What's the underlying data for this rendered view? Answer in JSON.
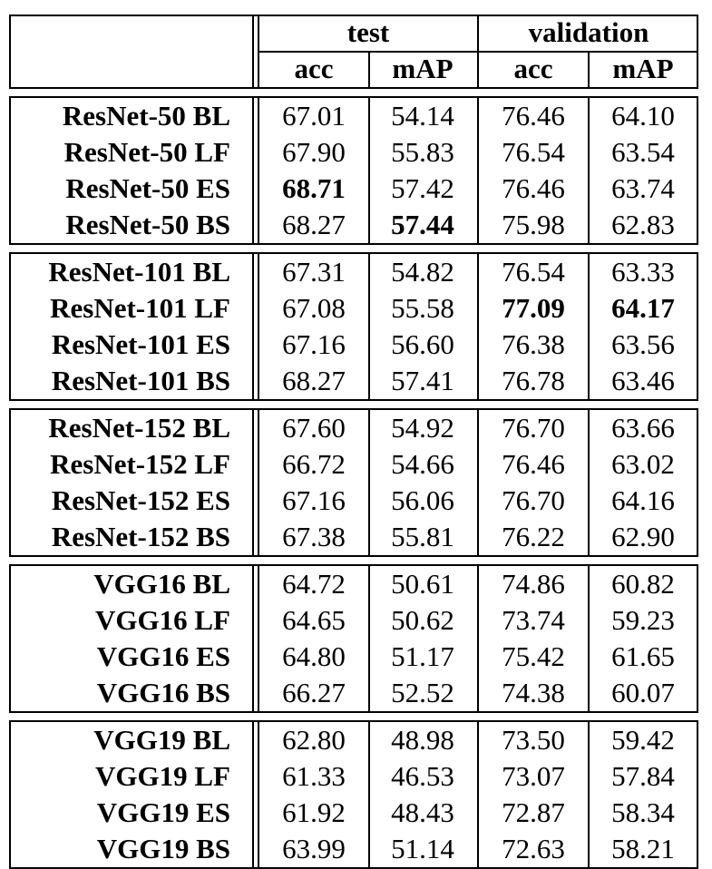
{
  "header": {
    "groups": [
      "test",
      "validation"
    ],
    "subcolumns": [
      "acc",
      "mAP",
      "acc",
      "mAP"
    ]
  },
  "groups": [
    {
      "rows": [
        {
          "label": "ResNet-50 BL",
          "values": [
            "67.01",
            "54.14",
            "76.46",
            "64.10"
          ],
          "bold": [
            false,
            false,
            false,
            false
          ]
        },
        {
          "label": "ResNet-50 LF",
          "values": [
            "67.90",
            "55.83",
            "76.54",
            "63.54"
          ],
          "bold": [
            false,
            false,
            false,
            false
          ]
        },
        {
          "label": "ResNet-50 ES",
          "values": [
            "68.71",
            "57.42",
            "76.46",
            "63.74"
          ],
          "bold": [
            true,
            false,
            false,
            false
          ]
        },
        {
          "label": "ResNet-50 BS",
          "values": [
            "68.27",
            "57.44",
            "75.98",
            "62.83"
          ],
          "bold": [
            false,
            true,
            false,
            false
          ]
        }
      ]
    },
    {
      "rows": [
        {
          "label": "ResNet-101 BL",
          "values": [
            "67.31",
            "54.82",
            "76.54",
            "63.33"
          ],
          "bold": [
            false,
            false,
            false,
            false
          ]
        },
        {
          "label": "ResNet-101 LF",
          "values": [
            "67.08",
            "55.58",
            "77.09",
            "64.17"
          ],
          "bold": [
            false,
            false,
            true,
            true
          ]
        },
        {
          "label": "ResNet-101 ES",
          "values": [
            "67.16",
            "56.60",
            "76.38",
            "63.56"
          ],
          "bold": [
            false,
            false,
            false,
            false
          ]
        },
        {
          "label": "ResNet-101 BS",
          "values": [
            "68.27",
            "57.41",
            "76.78",
            "63.46"
          ],
          "bold": [
            false,
            false,
            false,
            false
          ]
        }
      ]
    },
    {
      "rows": [
        {
          "label": "ResNet-152 BL",
          "values": [
            "67.60",
            "54.92",
            "76.70",
            "63.66"
          ],
          "bold": [
            false,
            false,
            false,
            false
          ]
        },
        {
          "label": "ResNet-152 LF",
          "values": [
            "66.72",
            "54.66",
            "76.46",
            "63.02"
          ],
          "bold": [
            false,
            false,
            false,
            false
          ]
        },
        {
          "label": "ResNet-152 ES",
          "values": [
            "67.16",
            "56.06",
            "76.70",
            "64.16"
          ],
          "bold": [
            false,
            false,
            false,
            false
          ]
        },
        {
          "label": "ResNet-152 BS",
          "values": [
            "67.38",
            "55.81",
            "76.22",
            "62.90"
          ],
          "bold": [
            false,
            false,
            false,
            false
          ]
        }
      ]
    },
    {
      "rows": [
        {
          "label": "VGG16 BL",
          "values": [
            "64.72",
            "50.61",
            "74.86",
            "60.82"
          ],
          "bold": [
            false,
            false,
            false,
            false
          ]
        },
        {
          "label": "VGG16 LF",
          "values": [
            "64.65",
            "50.62",
            "73.74",
            "59.23"
          ],
          "bold": [
            false,
            false,
            false,
            false
          ]
        },
        {
          "label": "VGG16 ES",
          "values": [
            "64.80",
            "51.17",
            "75.42",
            "61.65"
          ],
          "bold": [
            false,
            false,
            false,
            false
          ]
        },
        {
          "label": "VGG16 BS",
          "values": [
            "66.27",
            "52.52",
            "74.38",
            "60.07"
          ],
          "bold": [
            false,
            false,
            false,
            false
          ]
        }
      ]
    },
    {
      "rows": [
        {
          "label": "VGG19 BL",
          "values": [
            "62.80",
            "48.98",
            "73.50",
            "59.42"
          ],
          "bold": [
            false,
            false,
            false,
            false
          ]
        },
        {
          "label": "VGG19 LF",
          "values": [
            "61.33",
            "46.53",
            "73.07",
            "57.84"
          ],
          "bold": [
            false,
            false,
            false,
            false
          ]
        },
        {
          "label": "VGG19 ES",
          "values": [
            "61.92",
            "48.43",
            "72.87",
            "58.34"
          ],
          "bold": [
            false,
            false,
            false,
            false
          ]
        },
        {
          "label": "VGG19 BS",
          "values": [
            "63.99",
            "51.14",
            "72.63",
            "58.21"
          ],
          "bold": [
            false,
            false,
            false,
            false
          ]
        }
      ]
    }
  ]
}
